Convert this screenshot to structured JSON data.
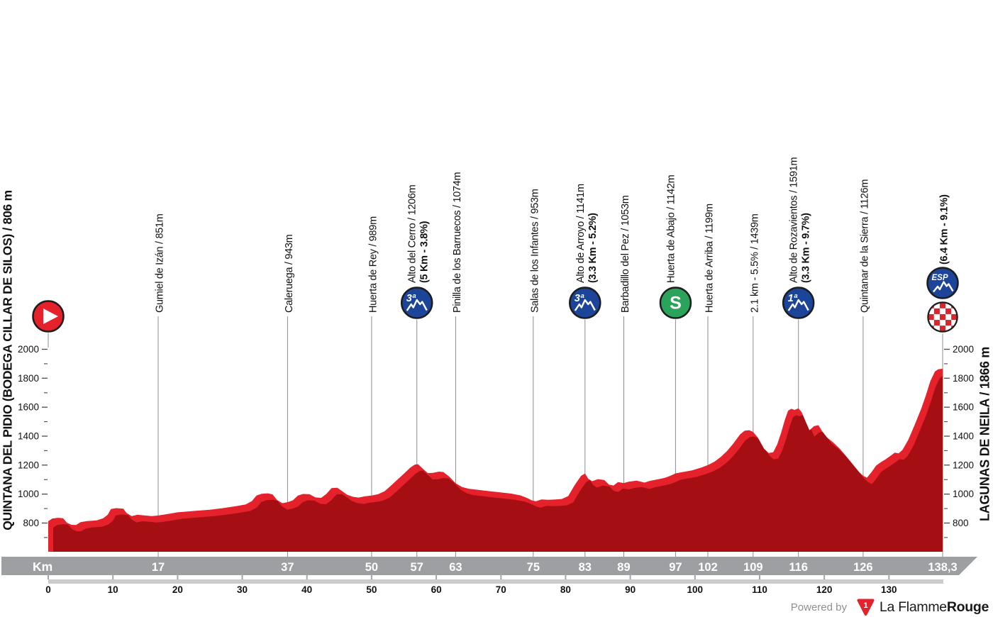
{
  "titles": {
    "left": "QUINTANA DEL PIDIO (BODEGA CILLAR DE SILOS) / 806 m",
    "right": "LAGUNAS DE NEILA / 1866 m"
  },
  "footer": {
    "powered_by": "Powered by",
    "logo_glyph": "1",
    "brand_prefix": "La Flamme",
    "brand_suffix": "Rouge"
  },
  "colors": {
    "profile": "#e5212b",
    "profile_shadow": "#a50f13",
    "cat_blue": "#1c4499",
    "sprint_green": "#2ba45b",
    "finish_red": "#d8262c",
    "bar_gray": "#9d9fa2",
    "ruler_gray": "#cbcbcb",
    "ruler_tick": "#a5a5a5",
    "gridline": "#8c8c8c",
    "tick": "#4a4a4a",
    "text": "#111111",
    "icon_ring": "#1d1d1d"
  },
  "axis": {
    "y_major": [
      2000,
      1800,
      1600,
      1400,
      1200,
      1000,
      800
    ],
    "y_minor": [
      1900,
      1700,
      1500,
      1300,
      1100,
      900,
      700
    ],
    "x_ruler": [
      0,
      10,
      20,
      30,
      40,
      50,
      60,
      70,
      80,
      90,
      100,
      110,
      120,
      130
    ]
  },
  "km_bar": {
    "label": "Km"
  },
  "start": {
    "km": 0,
    "icon": "start",
    "name": "Quintana del Pidio (Bodega Cillar de Silos)",
    "elevation_m": 806
  },
  "finish": {
    "name": "Lagunas de Neila",
    "elevation_m": 1866
  },
  "waypoints": [
    {
      "label": "Gumiel de Izán / 851m",
      "km": 17,
      "km_label": "17",
      "icon": null
    },
    {
      "label": "Caleruega / 943m",
      "km": 37,
      "km_label": "37",
      "icon": null
    },
    {
      "label": "Huerta de Rey / 989m",
      "km": 50,
      "km_label": "50",
      "icon": null
    },
    {
      "label": "Alto del Cerro / 1206m",
      "bold_label": "(5 Km - 3.8%)",
      "km": 57,
      "km_label": "57",
      "icon": "cat3",
      "icon_text": "3ª"
    },
    {
      "label": "Pinilla de los Barruecos / 1074m",
      "km": 63,
      "km_label": "63",
      "icon": null
    },
    {
      "label": "Salas de los Infantes / 953m",
      "km": 75,
      "km_label": "75",
      "icon": null
    },
    {
      "label": "Alto de Arroyo / 1141m",
      "bold_label": "(3.3 Km - 5.2%)",
      "km": 83,
      "km_label": "83",
      "icon": "cat3",
      "icon_text": "3ª"
    },
    {
      "label": "Barbadillo del Pez / 1053m",
      "km": 89,
      "km_label": "89",
      "icon": null
    },
    {
      "label": "Huerta de Abajo / 1142m",
      "km": 97,
      "km_label": "97",
      "icon": "sprint",
      "icon_text": "S"
    },
    {
      "label": "Huerta de Arriba / 1199m",
      "km": 102,
      "km_label": "102",
      "icon": null
    },
    {
      "label": "2.1 km - 5.5% / 1439m",
      "km": 109,
      "km_label": "109",
      "icon": null
    },
    {
      "label": "Alto de Rozavientos / 1591m",
      "bold_label": "(3.3 Km - 9.7%)",
      "km": 116,
      "km_label": "116",
      "icon": "cat1",
      "icon_text": "1ª"
    },
    {
      "label": "Quintanar de la Sierra / 1126m",
      "km": 126,
      "km_label": "126",
      "icon": null
    },
    {
      "label": "",
      "bold_label": "(6.4 Km - 9.1%)",
      "km": 138.3,
      "km_label": "138,3",
      "icon": "esp_finish",
      "icon_text": "ESP"
    }
  ],
  "chart_data": {
    "type": "area",
    "x_unit": "km",
    "y_unit": "m",
    "x_range": [
      0,
      138.3
    ],
    "y_ticks": [
      800,
      1000,
      1200,
      1400,
      1600,
      1800,
      2000
    ],
    "x_ticks": [
      0,
      10,
      20,
      30,
      40,
      50,
      60,
      70,
      80,
      90,
      100,
      110,
      120,
      130
    ],
    "km_markers": [
      17,
      37,
      50,
      57,
      63,
      75,
      83,
      89,
      97,
      102,
      109,
      116,
      126,
      138.3
    ],
    "start": {
      "name": "Quintana del Pidio (Bodega Cillar de Silos)",
      "elevation_m": 806,
      "km": 0
    },
    "finish": {
      "name": "Lagunas de Neila",
      "elevation_m": 1866,
      "km": 138.3,
      "final_climb": "(6.4 Km - 9.1%)"
    },
    "climbs": [
      {
        "name": "Alto del Cerro",
        "category": "3ª",
        "km": 57,
        "elevation_m": 1206,
        "stats": "(5 Km - 3.8%)"
      },
      {
        "name": "Alto de Arroyo",
        "category": "3ª",
        "km": 83,
        "elevation_m": 1141,
        "stats": "(3.3 Km - 5.2%)"
      },
      {
        "name": "Alto de Rozavientos",
        "category": "1ª",
        "km": 116,
        "elevation_m": 1591,
        "stats": "(3.3 Km - 9.7%)"
      },
      {
        "name": "Lagunas de Neila",
        "category": "ESP",
        "km": 138.3,
        "elevation_m": 1866,
        "stats": "(6.4 Km - 9.1%)"
      }
    ],
    "sprint": {
      "name": "Huerta de Abajo",
      "km": 97,
      "elevation_m": 1142
    },
    "profile_points": [
      [
        0,
        812
      ],
      [
        0.6,
        831
      ],
      [
        1.5,
        836
      ],
      [
        2.3,
        833
      ],
      [
        2.9,
        802
      ],
      [
        3.6,
        788
      ],
      [
        4.3,
        787
      ],
      [
        5,
        806
      ],
      [
        6,
        813
      ],
      [
        7.5,
        818
      ],
      [
        8.5,
        833
      ],
      [
        9.2,
        858
      ],
      [
        9.7,
        897
      ],
      [
        10.5,
        903
      ],
      [
        11.6,
        899
      ],
      [
        12.1,
        870
      ],
      [
        12.9,
        848
      ],
      [
        13.8,
        857
      ],
      [
        15,
        852
      ],
      [
        16,
        848
      ],
      [
        17,
        852
      ],
      [
        18.5,
        862
      ],
      [
        20,
        874
      ],
      [
        21.5,
        880
      ],
      [
        23,
        885
      ],
      [
        25,
        892
      ],
      [
        27,
        903
      ],
      [
        29,
        916
      ],
      [
        30.5,
        928
      ],
      [
        31.5,
        952
      ],
      [
        32.2,
        990
      ],
      [
        33,
        1002
      ],
      [
        34,
        1005
      ],
      [
        34.7,
        997
      ],
      [
        35.4,
        958
      ],
      [
        36.2,
        937
      ],
      [
        37,
        944
      ],
      [
        37.8,
        956
      ],
      [
        38.6,
        989
      ],
      [
        39.4,
        1001
      ],
      [
        40.4,
        999
      ],
      [
        41.3,
        977
      ],
      [
        42.2,
        974
      ],
      [
        43,
        1001
      ],
      [
        43.8,
        1041
      ],
      [
        44.7,
        1044
      ],
      [
        45.4,
        1022
      ],
      [
        46.2,
        996
      ],
      [
        47.1,
        981
      ],
      [
        48,
        976
      ],
      [
        49,
        985
      ],
      [
        50,
        990
      ],
      [
        51,
        999
      ],
      [
        52,
        1019
      ],
      [
        53,
        1058
      ],
      [
        54,
        1100
      ],
      [
        55,
        1141
      ],
      [
        56,
        1183
      ],
      [
        56.7,
        1204
      ],
      [
        57.2,
        1206
      ],
      [
        58,
        1172
      ],
      [
        58.7,
        1145
      ],
      [
        59.5,
        1147
      ],
      [
        60.4,
        1155
      ],
      [
        61.1,
        1152
      ],
      [
        62,
        1121
      ],
      [
        63,
        1075
      ],
      [
        64,
        1049
      ],
      [
        65,
        1037
      ],
      [
        66.5,
        1029
      ],
      [
        68,
        1021
      ],
      [
        70,
        1011
      ],
      [
        71.5,
        1004
      ],
      [
        73,
        991
      ],
      [
        74,
        974
      ],
      [
        74.8,
        956
      ],
      [
        75.4,
        950
      ],
      [
        76.3,
        963
      ],
      [
        77.3,
        960
      ],
      [
        78.3,
        962
      ],
      [
        79.4,
        966
      ],
      [
        80.4,
        986
      ],
      [
        81.4,
        1062
      ],
      [
        82.4,
        1126
      ],
      [
        83,
        1142
      ],
      [
        83.5,
        1106
      ],
      [
        84.1,
        1089
      ],
      [
        85,
        1103
      ],
      [
        86,
        1097
      ],
      [
        86.7,
        1066
      ],
      [
        87.4,
        1059
      ],
      [
        88.1,
        1083
      ],
      [
        89,
        1076
      ],
      [
        89.8,
        1086
      ],
      [
        91,
        1093
      ],
      [
        92.2,
        1079
      ],
      [
        93,
        1091
      ],
      [
        94.4,
        1103
      ],
      [
        95.4,
        1113
      ],
      [
        96.2,
        1126
      ],
      [
        97,
        1143
      ],
      [
        98,
        1151
      ],
      [
        99.5,
        1163
      ],
      [
        101,
        1183
      ],
      [
        102,
        1200
      ],
      [
        103,
        1223
      ],
      [
        104,
        1257
      ],
      [
        105,
        1299
      ],
      [
        106,
        1353
      ],
      [
        107,
        1413
      ],
      [
        107.7,
        1438
      ],
      [
        108.4,
        1441
      ],
      [
        109,
        1429
      ],
      [
        109.7,
        1392
      ],
      [
        110.7,
        1312
      ],
      [
        111.4,
        1284
      ],
      [
        112.1,
        1289
      ],
      [
        112.7,
        1341
      ],
      [
        113.3,
        1421
      ],
      [
        113.9,
        1512
      ],
      [
        114.4,
        1576
      ],
      [
        114.9,
        1589
      ],
      [
        115.4,
        1581
      ],
      [
        116,
        1592
      ],
      [
        116.5,
        1566
      ],
      [
        117.1,
        1502
      ],
      [
        117.7,
        1440
      ],
      [
        118.4,
        1469
      ],
      [
        119.1,
        1476
      ],
      [
        119.7,
        1432
      ],
      [
        120.4,
        1392
      ],
      [
        121.4,
        1356
      ],
      [
        122.4,
        1313
      ],
      [
        123.4,
        1261
      ],
      [
        124.4,
        1206
      ],
      [
        125.4,
        1151
      ],
      [
        126,
        1127
      ],
      [
        126.6,
        1113
      ],
      [
        127.3,
        1151
      ],
      [
        128,
        1196
      ],
      [
        128.7,
        1219
      ],
      [
        129.5,
        1241
      ],
      [
        130.2,
        1263
      ],
      [
        130.9,
        1286
      ],
      [
        131.5,
        1281
      ],
      [
        132.1,
        1306
      ],
      [
        133,
        1376
      ],
      [
        134,
        1481
      ],
      [
        135,
        1591
      ],
      [
        135.7,
        1681
      ],
      [
        136.4,
        1781
      ],
      [
        137.1,
        1846
      ],
      [
        137.6,
        1862
      ],
      [
        138.3,
        1866
      ]
    ]
  }
}
